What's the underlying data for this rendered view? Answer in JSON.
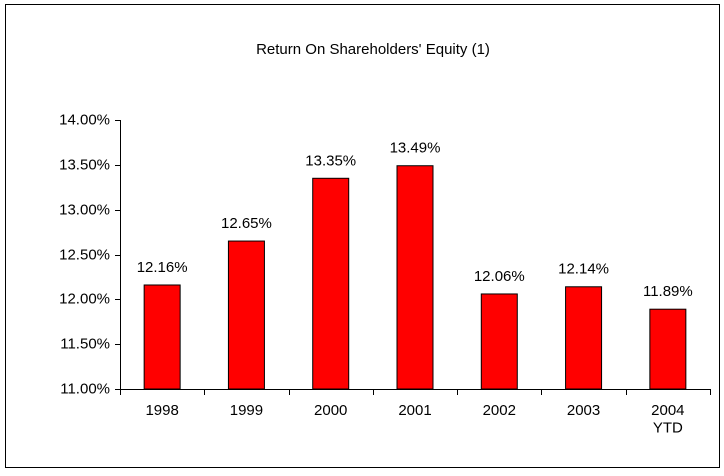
{
  "chart_data": {
    "type": "bar",
    "title": "Return On Shareholders' Equity (1)",
    "categories": [
      "1998",
      "1999",
      "2000",
      "2001",
      "2002",
      "2003",
      "2004\nYTD"
    ],
    "values": [
      12.16,
      12.65,
      13.35,
      13.49,
      12.06,
      12.14,
      11.89
    ],
    "value_labels": [
      "12.16%",
      "12.65%",
      "13.35%",
      "13.49%",
      "12.06%",
      "12.14%",
      "11.89%"
    ],
    "color": "#ff0000",
    "ylim": [
      11,
      14
    ],
    "yticks": [
      {
        "value": 11,
        "label": "11.00%"
      },
      {
        "value": 11.5,
        "label": "11.50%"
      },
      {
        "value": 12,
        "label": "12.00%"
      },
      {
        "value": 12.5,
        "label": "12.50%"
      },
      {
        "value": 13,
        "label": "13.00%"
      },
      {
        "value": 13.5,
        "label": "13.50%"
      },
      {
        "value": 14,
        "label": "14.00%"
      }
    ],
    "grid": false
  }
}
